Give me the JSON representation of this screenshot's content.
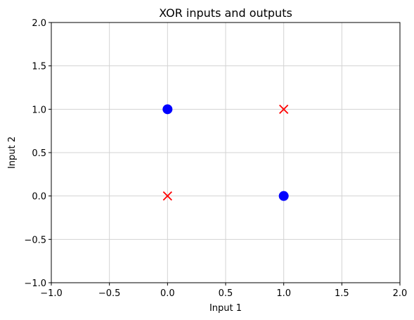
{
  "chart_data": {
    "type": "scatter",
    "title": "XOR inputs and outputs",
    "xlabel": "Input 1",
    "ylabel": "Input 2",
    "xlim": [
      -1.0,
      2.0
    ],
    "ylim": [
      -1.0,
      2.0
    ],
    "grid": true,
    "x_ticks": [
      -1.0,
      -0.5,
      0.0,
      0.5,
      1.0,
      1.5,
      2.0
    ],
    "y_ticks": [
      -1.0,
      -0.5,
      0.0,
      0.5,
      1.0,
      1.5,
      2.0
    ],
    "x_tick_labels": [
      "−1.0",
      "−0.5",
      "0.0",
      "0.5",
      "1.0",
      "1.5",
      "2.0"
    ],
    "y_tick_labels": [
      "−1.0",
      "−0.5",
      "0.0",
      "0.5",
      "1.0",
      "1.5",
      "2.0"
    ],
    "series": [
      {
        "marker": "circle",
        "color": "#0000ff",
        "points": [
          {
            "x": 0,
            "y": 1
          },
          {
            "x": 1,
            "y": 0
          }
        ]
      },
      {
        "marker": "x",
        "color": "#ff0000",
        "points": [
          {
            "x": 0,
            "y": 0
          },
          {
            "x": 1,
            "y": 1
          }
        ]
      }
    ]
  }
}
